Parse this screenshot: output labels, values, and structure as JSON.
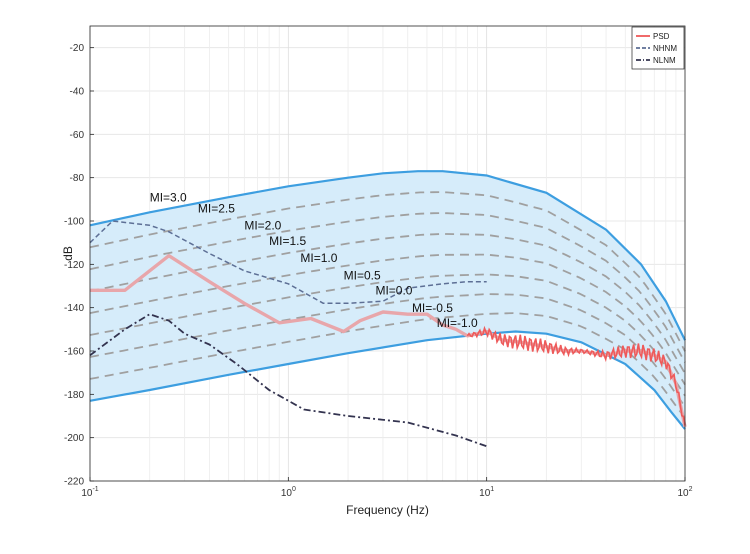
{
  "chart_data": {
    "type": "line",
    "title": "",
    "xlabel": "Frequency (Hz)",
    "ylabel": "dB",
    "xscale": "log",
    "xlim": [
      0.1,
      100
    ],
    "ylim": [
      -220,
      -10
    ],
    "x_ticks": [
      {
        "value": 0.1,
        "base": "10",
        "exp": "-1"
      },
      {
        "value": 1,
        "base": "10",
        "exp": "0"
      },
      {
        "value": 10,
        "base": "10",
        "exp": "1"
      },
      {
        "value": 100,
        "base": "10",
        "exp": "2"
      }
    ],
    "y_ticks": [
      -20,
      -40,
      -60,
      -80,
      -100,
      -120,
      -140,
      -160,
      -180,
      -200,
      -220
    ],
    "grid": true,
    "legend_position": "top-right",
    "colors": {
      "band_fill": "#d6ecfa",
      "band_edge": "#3d9ee0",
      "mi_curves": "#a0a0a0",
      "psd": "#ee5a5a",
      "psd_smooth": "#e8a6aa",
      "nhnm": "#5d6f95",
      "nlnm": "#33334f"
    },
    "series": [
      {
        "name": "PSD",
        "x": [
          0.1,
          0.15,
          0.25,
          0.4,
          0.6,
          0.9,
          1.3,
          1.9,
          2.3,
          3,
          4,
          5,
          6,
          7,
          8,
          9,
          10,
          12,
          15,
          20,
          25,
          30,
          40,
          50,
          60,
          70,
          80,
          90,
          100
        ],
        "y": [
          -132,
          -132,
          -116,
          -128,
          -138,
          -147,
          -145,
          -151,
          -146,
          -142,
          -143,
          -143,
          -148,
          -150,
          -153,
          -152,
          -151,
          -155,
          -156,
          -158,
          -160,
          -160,
          -162,
          -160,
          -160,
          -162,
          -165,
          -175,
          -195
        ]
      },
      {
        "name": "NHNM",
        "x": [
          0.1,
          0.13,
          0.2,
          0.25,
          0.4,
          0.6,
          1.0,
          1.5,
          2.0,
          3.0,
          4.0,
          6.0,
          8.0,
          10.0
        ],
        "y": [
          -110,
          -100,
          -102,
          -105,
          -115,
          -123,
          -129,
          -138,
          -138,
          -137,
          -131,
          -129,
          -128,
          -128
        ]
      },
      {
        "name": "NLNM",
        "x": [
          0.1,
          0.15,
          0.2,
          0.25,
          0.3,
          0.4,
          0.55,
          0.8,
          1.2,
          2.0,
          4.0,
          7.0,
          10.0
        ],
        "y": [
          -162,
          -150,
          -143,
          -146,
          -152,
          -157,
          -166,
          -178,
          -187,
          -190,
          -193,
          -199,
          -204
        ]
      }
    ],
    "band": {
      "upper": {
        "x": [
          0.1,
          0.2,
          0.5,
          1,
          2,
          3,
          4.5,
          6,
          10,
          20,
          40,
          60,
          80,
          100
        ],
        "y": [
          -102,
          -96,
          -89,
          -84,
          -80,
          -78,
          -77,
          -77,
          -79,
          -87,
          -104,
          -120,
          -137,
          -155
        ]
      },
      "lower": {
        "x": [
          0.1,
          0.2,
          0.5,
          1,
          2,
          5,
          10,
          14,
          20,
          30,
          50,
          70,
          85,
          100
        ],
        "y": [
          -183,
          -178,
          -171,
          -166,
          -161,
          -155,
          -152,
          -151,
          -152,
          -156,
          -166,
          -178,
          -188,
          -196
        ]
      }
    },
    "mi_curves": [
      {
        "label": "MI=3.0",
        "x": 0.2,
        "y": -91
      },
      {
        "label": "MI=2.5",
        "x": 0.35,
        "y": -96
      },
      {
        "label": "MI=2.0",
        "x": 0.6,
        "y": -104
      },
      {
        "label": "MI=1.5",
        "x": 0.8,
        "y": -111
      },
      {
        "label": "MI=1.0",
        "x": 1.15,
        "y": -119
      },
      {
        "label": "MI=0.5",
        "x": 1.9,
        "y": -127
      },
      {
        "label": "MI=0.0",
        "x": 2.75,
        "y": -134
      },
      {
        "label": "MI=-0.5",
        "x": 4.2,
        "y": -142
      },
      {
        "label": "MI=-1.0",
        "x": 5.6,
        "y": -149
      }
    ],
    "legend": [
      {
        "label": "PSD",
        "style": "solid",
        "color": "#ee5a5a"
      },
      {
        "label": "NHNM",
        "style": "dashed",
        "color": "#5d6f95"
      },
      {
        "label": "NLNM",
        "style": "dashdot",
        "color": "#33334f"
      }
    ]
  }
}
